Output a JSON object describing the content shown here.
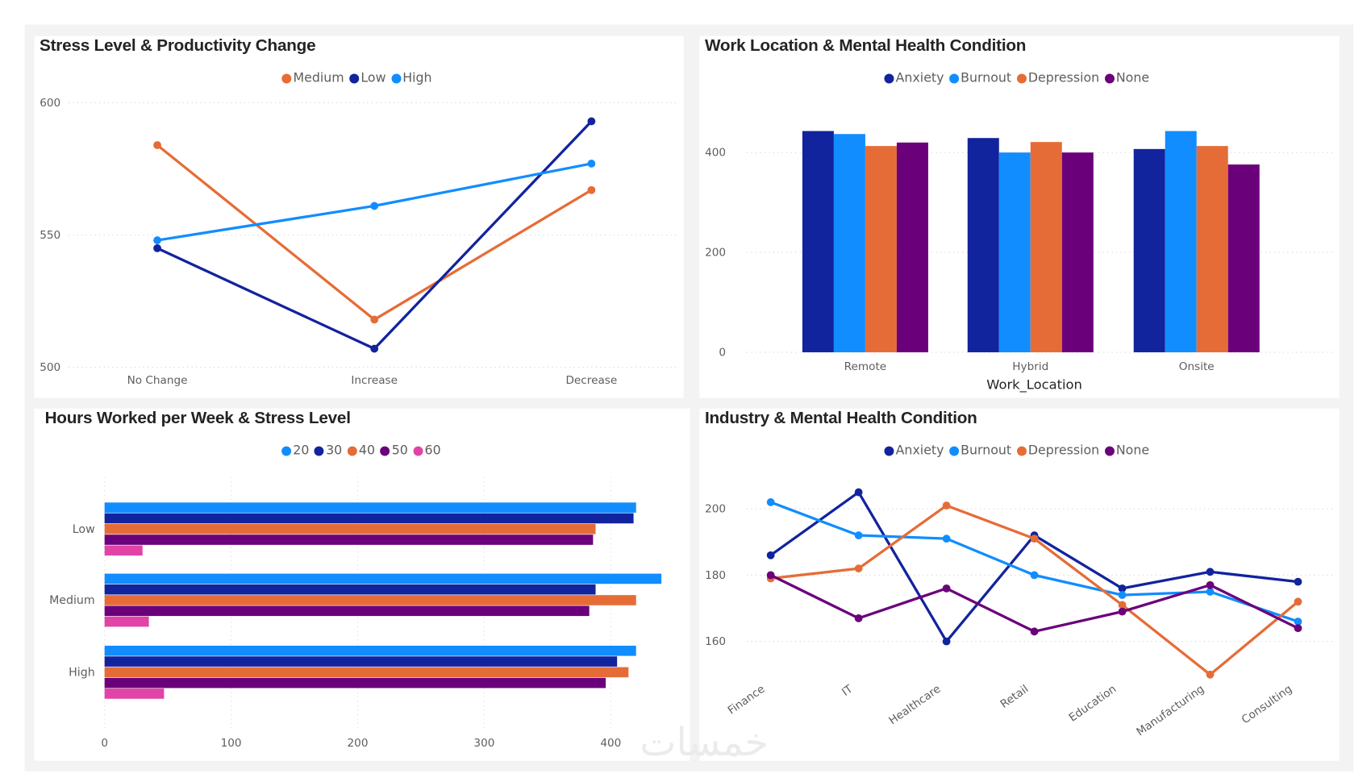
{
  "watermark": "خمسات",
  "colors": {
    "dark_blue": "#12239E",
    "light_blue": "#118DFF",
    "orange": "#E66C37",
    "purple": "#6B007B",
    "pink": "#E044A7"
  },
  "chart_data": [
    {
      "id": "stress-productivity",
      "type": "line",
      "title": "Stress Level & Productivity Change",
      "categories": [
        "No Change",
        "Increase",
        "Decrease"
      ],
      "ylim": [
        500,
        600
      ],
      "yticks": [
        "500",
        "550",
        "600"
      ],
      "grid": true,
      "legend_placement": "top-center",
      "series": [
        {
          "name": "Medium",
          "color": "#E66C37",
          "values": [
            584,
            518,
            567
          ]
        },
        {
          "name": "Low",
          "color": "#12239E",
          "values": [
            545,
            507,
            593
          ]
        },
        {
          "name": "High",
          "color": "#118DFF",
          "values": [
            548,
            561,
            577
          ]
        }
      ]
    },
    {
      "id": "work-location",
      "type": "bar",
      "title": "Work Location & Mental Health Condition",
      "xlabel": "Work_Location",
      "categories": [
        "Remote",
        "Hybrid",
        "Onsite"
      ],
      "ylim": [
        0,
        450
      ],
      "yticks": [
        "0",
        "200",
        "400"
      ],
      "grid": true,
      "legend_placement": "top-center",
      "series": [
        {
          "name": "Anxiety",
          "color": "#12239E",
          "values": [
            443,
            429,
            407
          ]
        },
        {
          "name": "Burnout",
          "color": "#118DFF",
          "values": [
            437,
            400,
            443
          ]
        },
        {
          "name": "Depression",
          "color": "#E66C37",
          "values": [
            413,
            421,
            413
          ]
        },
        {
          "name": "None",
          "color": "#6B007B",
          "values": [
            420,
            400,
            376
          ]
        }
      ]
    },
    {
      "id": "hours-stress",
      "type": "bar",
      "orientation": "horizontal",
      "title": "Hours Worked per Week & Stress Level",
      "categories": [
        "Low",
        "Medium",
        "High"
      ],
      "xlim": [
        0,
        440
      ],
      "xticks": [
        "0",
        "100",
        "200",
        "300",
        "400"
      ],
      "grid": true,
      "legend_placement": "top-center",
      "series": [
        {
          "name": "20",
          "color": "#118DFF",
          "values": [
            420,
            440,
            420
          ]
        },
        {
          "name": "30",
          "color": "#12239E",
          "values": [
            418,
            388,
            405
          ]
        },
        {
          "name": "40",
          "color": "#E66C37",
          "values": [
            388,
            420,
            414
          ]
        },
        {
          "name": "50",
          "color": "#6B007B",
          "values": [
            386,
            383,
            396
          ]
        },
        {
          "name": "60",
          "color": "#E044A7",
          "values": [
            30,
            35,
            47
          ]
        }
      ]
    },
    {
      "id": "industry",
      "type": "line",
      "title": "Industry & Mental Health Condition",
      "categories": [
        "Finance",
        "IT",
        "Healthcare",
        "Retail",
        "Education",
        "Manufacturing",
        "Consulting"
      ],
      "ylim": [
        146,
        208
      ],
      "yticks": [
        "160",
        "180",
        "200"
      ],
      "grid": true,
      "legend_placement": "top-center",
      "series": [
        {
          "name": "Anxiety",
          "color": "#12239E",
          "values": [
            186,
            205,
            160,
            192,
            176,
            181,
            178
          ]
        },
        {
          "name": "Burnout",
          "color": "#118DFF",
          "values": [
            202,
            192,
            191,
            180,
            174,
            175,
            166
          ]
        },
        {
          "name": "Depression",
          "color": "#E66C37",
          "values": [
            179,
            182,
            201,
            191,
            171,
            150,
            172
          ]
        },
        {
          "name": "None",
          "color": "#6B007B",
          "values": [
            180,
            167,
            176,
            163,
            169,
            177,
            164
          ]
        }
      ]
    }
  ]
}
